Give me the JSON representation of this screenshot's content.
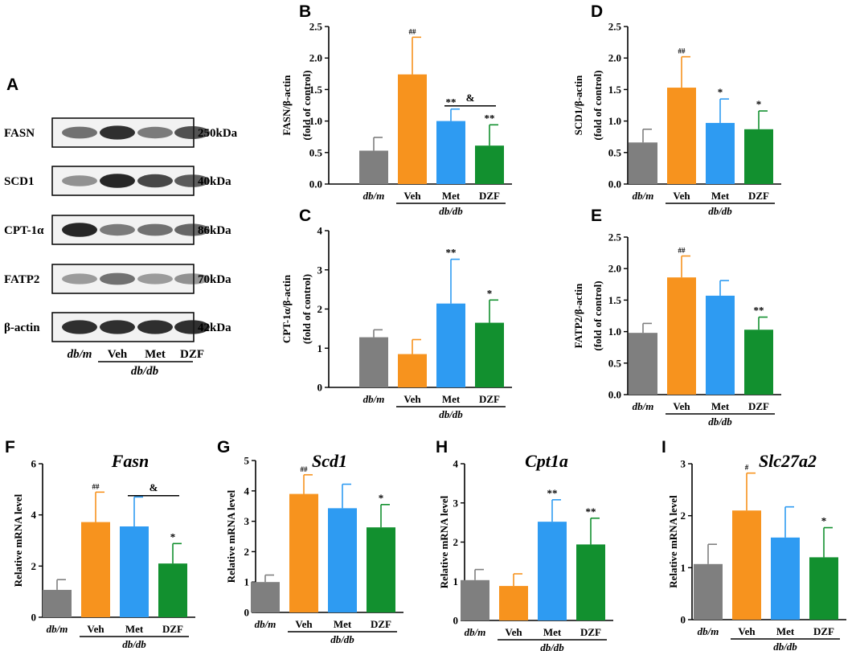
{
  "colors": {
    "dbm": "#7f7f7f",
    "veh": "#f7931e",
    "met": "#2e9bf2",
    "dzf": "#12902f"
  },
  "western_blot": {
    "panel_letter": "A",
    "proteins": [
      "FASN",
      "SCD1",
      "CPT-1α",
      "FATP2",
      "β-actin"
    ],
    "sizes": [
      "250kDa",
      "40kDa",
      "86kDa",
      "70kDa",
      "42kDa"
    ],
    "lanes": [
      "db/m",
      "Veh",
      "Met",
      "DZF"
    ],
    "group_label": "db/db",
    "band_intensity": [
      [
        0.6,
        0.9,
        0.55,
        0.75
      ],
      [
        0.45,
        0.95,
        0.8,
        0.7
      ],
      [
        0.95,
        0.55,
        0.6,
        0.65
      ],
      [
        0.4,
        0.6,
        0.4,
        0.45
      ],
      [
        0.9,
        0.9,
        0.9,
        0.9
      ]
    ]
  },
  "chart_data": [
    {
      "panel": "B",
      "type": "bar",
      "title": "",
      "ylabel": "FASN/β-actin (fold of control)",
      "ylabel_line1": "FASN/β-actin",
      "ylabel_line2": "(fold of control)",
      "categories": [
        "db/m",
        "Veh",
        "Met",
        "DZF"
      ],
      "group_label": "db/db",
      "values": [
        0.53,
        1.74,
        1.0,
        0.61
      ],
      "errors": [
        0.21,
        0.59,
        0.19,
        0.33
      ],
      "ylim": [
        0,
        2.5
      ],
      "ticks": [
        "0.0",
        "0.5",
        "1.0",
        "1.5",
        "2.0",
        "2.5"
      ],
      "sig": [
        "",
        "##",
        "**",
        "**"
      ],
      "bracket": {
        "from": 2,
        "to": 3,
        "label": "&",
        "value": 1.24
      }
    },
    {
      "panel": "D",
      "type": "bar",
      "title": "",
      "ylabel": "SCD1/β-actin (fold of control)",
      "ylabel_line1": "SCD1/β-actin",
      "ylabel_line2": "(fold of control)",
      "categories": [
        "db/m",
        "Veh",
        "Met",
        "DZF"
      ],
      "group_label": "db/db",
      "values": [
        0.66,
        1.53,
        0.97,
        0.87
      ],
      "errors": [
        0.21,
        0.49,
        0.38,
        0.29
      ],
      "ylim": [
        0,
        2.5
      ],
      "ticks": [
        "0.0",
        "0.5",
        "1.0",
        "1.5",
        "2.0",
        "2.5"
      ],
      "sig": [
        "",
        "##",
        "*",
        "*"
      ]
    },
    {
      "panel": "C",
      "type": "bar",
      "title": "",
      "ylabel": "CPT-1α/β-actin (fold of control)",
      "ylabel_line1": "CPT-1α/β-actin",
      "ylabel_line2": "(fold of control)",
      "categories": [
        "db/m",
        "Veh",
        "Met",
        "DZF"
      ],
      "group_label": "db/db",
      "values": [
        1.28,
        0.85,
        2.14,
        1.65
      ],
      "errors": [
        0.19,
        0.37,
        1.13,
        0.58
      ],
      "ylim": [
        0,
        4
      ],
      "ticks": [
        "0",
        "1",
        "2",
        "3",
        "4"
      ],
      "sig": [
        "",
        "",
        "**",
        "*"
      ]
    },
    {
      "panel": "E",
      "type": "bar",
      "title": "",
      "ylabel": "FATP2/β-actin (fold of control)",
      "ylabel_line1": "FATP2/β-actin",
      "ylabel_line2": "(fold of control)",
      "categories": [
        "db/m",
        "Veh",
        "Met",
        "DZF"
      ],
      "group_label": "db/db",
      "values": [
        0.98,
        1.86,
        1.57,
        1.03
      ],
      "errors": [
        0.15,
        0.34,
        0.24,
        0.2
      ],
      "ylim": [
        0,
        2.5
      ],
      "ticks": [
        "0.0",
        "0.5",
        "1.0",
        "1.5",
        "2.0",
        "2.5"
      ],
      "sig": [
        "",
        "##",
        "",
        "**"
      ]
    },
    {
      "panel": "F",
      "type": "bar",
      "title": "Fasn",
      "ylabel": "Relative mRNA level",
      "categories": [
        "db/m",
        "Veh",
        "Met",
        "DZF"
      ],
      "group_label": "db/db",
      "values": [
        1.07,
        3.72,
        3.55,
        2.1
      ],
      "errors": [
        0.4,
        1.17,
        1.15,
        0.78
      ],
      "ylim": [
        0,
        6
      ],
      "ticks": [
        "0",
        "2",
        "4",
        "6"
      ],
      "sig": [
        "",
        "##",
        "",
        "*"
      ],
      "bracket": {
        "from": 2,
        "to": 3,
        "label": "&",
        "value": 4.75
      }
    },
    {
      "panel": "G",
      "type": "bar",
      "title": "Scd1",
      "ylabel": "Relative mRNA level",
      "categories": [
        "db/m",
        "Veh",
        "Met",
        "DZF"
      ],
      "group_label": "db/db",
      "values": [
        1.0,
        3.9,
        3.43,
        2.8
      ],
      "errors": [
        0.23,
        0.63,
        0.79,
        0.75
      ],
      "ylim": [
        0,
        5
      ],
      "ticks": [
        "0",
        "1",
        "2",
        "3",
        "4",
        "5"
      ],
      "sig": [
        "",
        "##",
        "",
        "*"
      ]
    },
    {
      "panel": "H",
      "type": "bar",
      "title": "Cpt1a",
      "ylabel": "Relative mRNA level",
      "categories": [
        "db/m",
        "Veh",
        "Met",
        "DZF"
      ],
      "group_label": "db/db",
      "values": [
        1.03,
        0.88,
        2.52,
        1.94
      ],
      "errors": [
        0.27,
        0.31,
        0.56,
        0.67
      ],
      "ylim": [
        0,
        4
      ],
      "ticks": [
        "0",
        "1",
        "2",
        "3",
        "4"
      ],
      "sig": [
        "",
        "",
        "**",
        "**"
      ]
    },
    {
      "panel": "I",
      "type": "bar",
      "title": "Slc27a2",
      "ylabel": "Relative mRNA level",
      "categories": [
        "db/m",
        "Veh",
        "Met",
        "DZF"
      ],
      "group_label": "db/db",
      "values": [
        1.07,
        2.1,
        1.58,
        1.2
      ],
      "errors": [
        0.38,
        0.72,
        0.59,
        0.57
      ],
      "ylim": [
        0,
        3
      ],
      "ticks": [
        "0",
        "1",
        "2",
        "3"
      ],
      "sig": [
        "",
        "#",
        "",
        "*"
      ]
    }
  ]
}
